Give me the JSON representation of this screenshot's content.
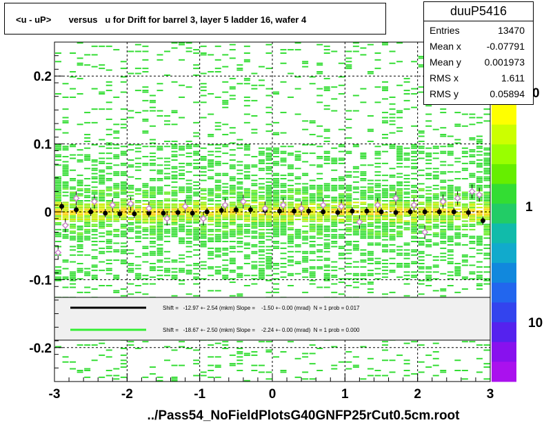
{
  "title": "<u - uP>       versus   u for Drift for barrel 3, layer 5 ladder 16, wafer 4",
  "stats": {
    "name": "duuP5416",
    "rows": [
      {
        "key": "Entries",
        "value": "13470"
      },
      {
        "key": "Mean x",
        "value": "-0.07791"
      },
      {
        "key": "Mean y",
        "value": "0.001973"
      },
      {
        "key": "RMS x",
        "value": "1.611"
      },
      {
        "key": "RMS y",
        "value": "0.05894"
      }
    ]
  },
  "footer": "../Pass54_NoFieldPlotsG40GNFP25rCut0.5cm.root",
  "colors": {
    "black_series": "#000000",
    "green_series": "#33ee33",
    "marker_open": "#cc88cc"
  },
  "chart_data": {
    "type": "heatmap",
    "xlim": [
      -3,
      3
    ],
    "ylim": [
      -0.25,
      0.25
    ],
    "x_ticks": [
      "-3",
      "-2",
      "-1",
      "0",
      "1",
      "2",
      "3"
    ],
    "y_ticks": [
      "-0.2",
      "-0.1",
      "0",
      "0.1",
      "0.2"
    ],
    "grid": true,
    "colorbar_labels": [
      "10",
      "1",
      "0"
    ],
    "colorbar_scale": "log",
    "legend": [
      {
        "text": "Shift =   -12.97 +- 2.54 (mkm) Slope =    -1.50 +- 0.00 (mrad)  N = 1 prob = 0.017",
        "color": "#000000"
      },
      {
        "text": "Shift =   -18.67 +- 2.50 (mkm) Slope =    -2.24 +- 0.00 (mrad)  N = 1 prob = 0.000",
        "color": "#33ee33"
      }
    ],
    "series": [
      {
        "marker": "filled-circle",
        "x": [
          -2.9,
          -2.7,
          -2.5,
          -2.3,
          -2.1,
          -1.9,
          -1.7,
          -1.5,
          -1.3,
          -1.1,
          -0.9,
          -0.7,
          -0.5,
          -0.3,
          -0.1,
          0.1,
          0.3,
          0.5,
          0.7,
          0.9,
          1.1,
          1.3,
          1.5,
          1.7,
          1.9,
          2.1,
          2.3,
          2.5,
          2.7,
          2.9
        ],
        "y": [
          0.008,
          0.003,
          0.0,
          -0.002,
          -0.003,
          -0.003,
          -0.002,
          -0.002,
          -0.001,
          -0.002,
          0.0,
          0.002,
          0.003,
          0.003,
          0.002,
          0.001,
          0.001,
          0.001,
          0.0,
          -0.001,
          0.001,
          0.001,
          0.0,
          -0.001,
          0.0,
          0.0,
          0.0,
          0.0,
          -0.001,
          -0.013
        ]
      },
      {
        "marker": "open-diamond",
        "x": [
          -2.95,
          -2.85,
          -2.7,
          -2.45,
          -2.2,
          -1.95,
          -1.7,
          -1.45,
          -1.2,
          -0.95,
          -0.65,
          -0.4,
          -0.1,
          0.15,
          0.4,
          0.7,
          0.95,
          1.2,
          1.45,
          1.7,
          1.95,
          2.1,
          2.35,
          2.55,
          2.75,
          2.85
        ],
        "y": [
          -0.06,
          -0.02,
          0.02,
          0.015,
          0.01,
          0.012,
          0.005,
          -0.01,
          0.008,
          -0.01,
          0.01,
          0.015,
          0.005,
          0.01,
          0.005,
          0.01,
          0.008,
          -0.015,
          0.01,
          0.02,
          0.01,
          -0.03,
          0.015,
          0.02,
          0.03,
          0.025
        ]
      }
    ]
  }
}
